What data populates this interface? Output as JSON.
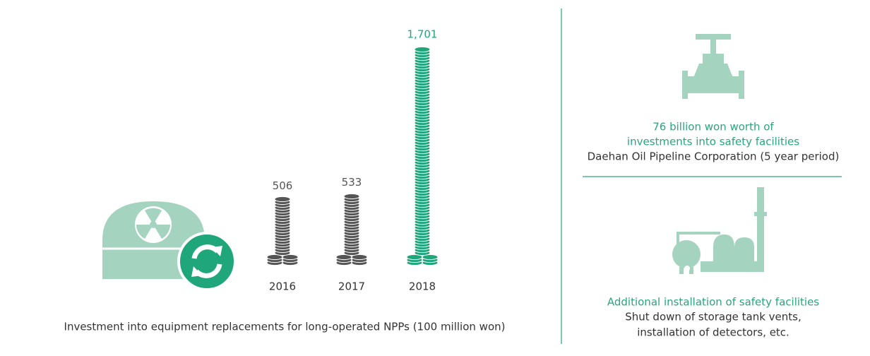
{
  "chart_data": {
    "type": "bar",
    "title": "Investment into equipment replacements for long-operated NPPs (100 million won)",
    "categories": [
      "2016",
      "2017",
      "2018"
    ],
    "values": [
      506,
      533,
      1701
    ],
    "value_labels": [
      "506",
      "533",
      "1,701"
    ],
    "colors": [
      "#555555",
      "#555555",
      "#1fa67a"
    ]
  },
  "side_panels": [
    {
      "highlight": [
        "76 billion won worth of",
        "investments into safety facilities"
      ],
      "text": [
        "Daehan Oil Pipeline Corporation (5 year period)"
      ]
    },
    {
      "highlight": [
        "Additional installation of safety facilities"
      ],
      "text": [
        "Shut down of storage tank vents,",
        "installation of detectors, etc."
      ]
    }
  ]
}
